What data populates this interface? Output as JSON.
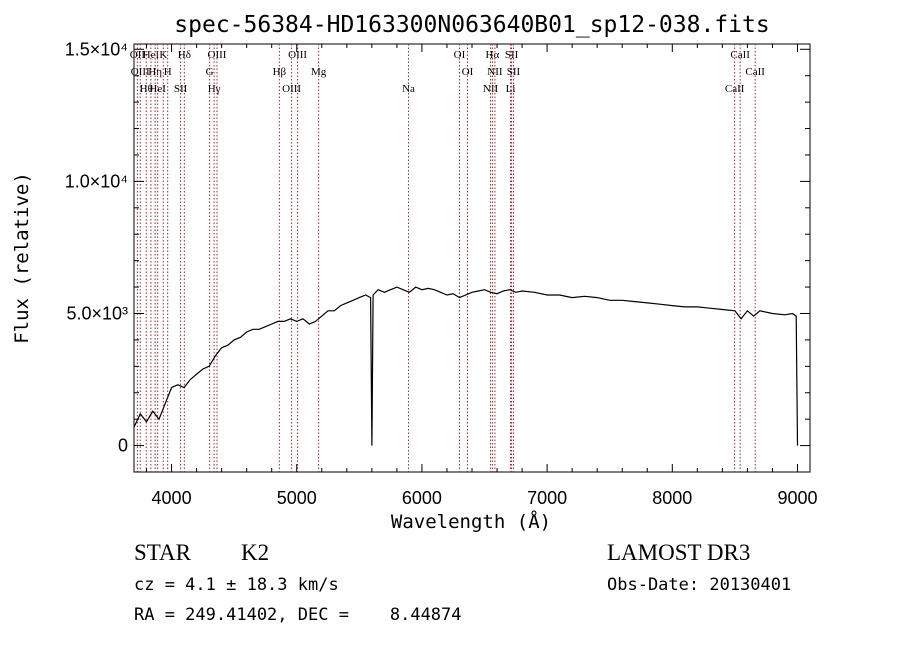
{
  "chart_data": {
    "type": "line",
    "title": "spec-56384-HD163300N063640B01_sp12-038.fits",
    "xlabel": "Wavelength (Å)",
    "ylabel": "Flux (relative)",
    "xlim": [
      3700,
      9100
    ],
    "ylim": [
      -1000,
      15200
    ],
    "grid": false,
    "legend": "none",
    "x_ticks": [
      {
        "value": 4000,
        "label": "4000"
      },
      {
        "value": 5000,
        "label": "5000"
      },
      {
        "value": 6000,
        "label": "6000"
      },
      {
        "value": 7000,
        "label": "7000"
      },
      {
        "value": 8000,
        "label": "8000"
      },
      {
        "value": 9000,
        "label": "9000"
      }
    ],
    "y_ticks": [
      {
        "value": 0,
        "label": "0"
      },
      {
        "value": 5000,
        "label": "5.0×10³"
      },
      {
        "value": 10000,
        "label": "1.0×10⁴"
      },
      {
        "value": 15000,
        "label": "1.5×10⁴"
      }
    ],
    "series": [
      {
        "x": [
          3700,
          3750,
          3800,
          3850,
          3900,
          3950,
          4000,
          4050,
          4100,
          4150,
          4200,
          4250,
          4300,
          4350,
          4400,
          4450,
          4500,
          4550,
          4600,
          4650,
          4700,
          4750,
          4800,
          4850,
          4900,
          4950,
          5000,
          5050,
          5100,
          5150,
          5200,
          5250,
          5300,
          5350,
          5400,
          5450,
          5500,
          5550,
          5590,
          5600,
          5610,
          5650,
          5700,
          5750,
          5800,
          5850,
          5900,
          5950,
          6000,
          6050,
          6100,
          6150,
          6200,
          6250,
          6300,
          6350,
          6400,
          6450,
          6500,
          6550,
          6600,
          6650,
          6700,
          6750,
          6800,
          6900,
          7000,
          7100,
          7200,
          7300,
          7400,
          7500,
          7600,
          7700,
          7800,
          7900,
          8000,
          8100,
          8200,
          8300,
          8400,
          8500,
          8550,
          8600,
          8650,
          8700,
          8800,
          8900,
          8960,
          8990,
          9000
        ],
        "y": [
          700,
          1200,
          900,
          1300,
          1000,
          1600,
          2200,
          2300,
          2200,
          2500,
          2700,
          2900,
          3000,
          3400,
          3700,
          3800,
          4000,
          4100,
          4300,
          4400,
          4400,
          4500,
          4600,
          4700,
          4700,
          4800,
          4700,
          4800,
          4600,
          4700,
          4900,
          5100,
          5100,
          5300,
          5400,
          5500,
          5600,
          5700,
          5600,
          0,
          5700,
          5900,
          5800,
          5900,
          6000,
          5900,
          5800,
          6000,
          5900,
          5950,
          5900,
          5800,
          5700,
          5750,
          5600,
          5700,
          5800,
          5850,
          5900,
          5800,
          5750,
          5850,
          5900,
          5800,
          5850,
          5800,
          5700,
          5700,
          5600,
          5650,
          5600,
          5500,
          5500,
          5450,
          5400,
          5350,
          5300,
          5250,
          5250,
          5200,
          5150,
          5100,
          4800,
          5100,
          4900,
          5100,
          5000,
          4950,
          5000,
          4900,
          0
        ]
      }
    ],
    "line_markers": [
      {
        "wavelength": 3727,
        "label": "OII"
      },
      {
        "wavelength": 3750,
        "label": "OIII"
      },
      {
        "wavelength": 3798,
        "label": "Hθ"
      },
      {
        "wavelength": 3835,
        "label": "HeI"
      },
      {
        "wavelength": 3869,
        "label": "Hη"
      },
      {
        "wavelength": 3889,
        "label": "HeI"
      },
      {
        "wavelength": 3934,
        "label": "K"
      },
      {
        "wavelength": 3969,
        "label": "H"
      },
      {
        "wavelength": 4072,
        "label": "SII"
      },
      {
        "wavelength": 4102,
        "label": "Hδ"
      },
      {
        "wavelength": 4304,
        "label": "G"
      },
      {
        "wavelength": 4340,
        "label": "Hγ"
      },
      {
        "wavelength": 4363,
        "label": "OIII"
      },
      {
        "wavelength": 4861,
        "label": "Hβ"
      },
      {
        "wavelength": 4959,
        "label": "OIII"
      },
      {
        "wavelength": 5007,
        "label": "OIII"
      },
      {
        "wavelength": 5175,
        "label": "Mg"
      },
      {
        "wavelength": 5893,
        "label": "Na"
      },
      {
        "wavelength": 6300,
        "label": "OI"
      },
      {
        "wavelength": 6364,
        "label": "OI"
      },
      {
        "wavelength": 6548,
        "label": "NII"
      },
      {
        "wavelength": 6563,
        "label": "Hα"
      },
      {
        "wavelength": 6583,
        "label": "NII"
      },
      {
        "wavelength": 6708,
        "label": "Li"
      },
      {
        "wavelength": 6716,
        "label": "SII"
      },
      {
        "wavelength": 6731,
        "label": "SII"
      },
      {
        "wavelength": 8498,
        "label": "CaII"
      },
      {
        "wavelength": 8542,
        "label": "CaII"
      },
      {
        "wavelength": 8662,
        "label": "CaII"
      }
    ],
    "colors": {
      "spectrum": "#000000",
      "line_markers": "#b22222",
      "axes": "#000000"
    }
  },
  "info": {
    "object_class": "STAR",
    "subclass": "K2",
    "survey": "LAMOST DR3",
    "cz": "cz = 4.1 ± 18.3 km/s",
    "obs_date": "Obs-Date: 20130401",
    "coords": "RA = 249.41402, DEC =    8.44874"
  }
}
